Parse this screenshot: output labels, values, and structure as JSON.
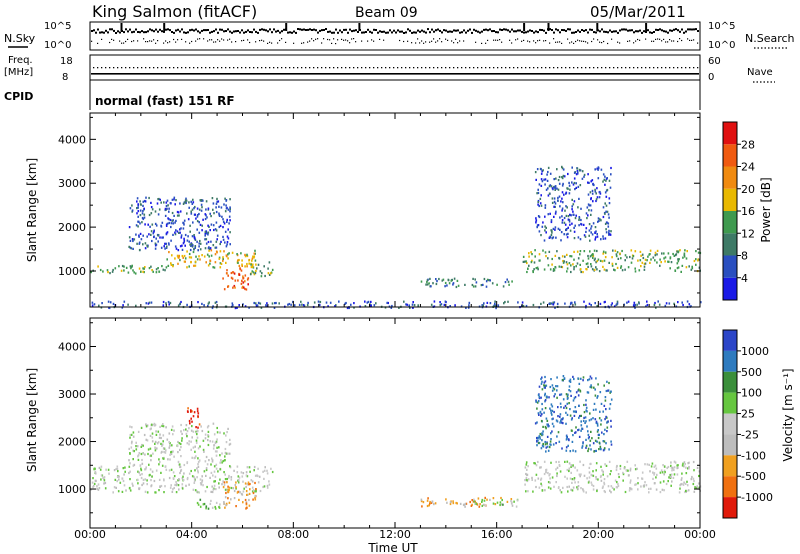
{
  "header": {
    "station": "King Salmon (fitACF)",
    "beam": "Beam 09",
    "date": "05/Mar/2011"
  },
  "summary_panels": {
    "nsky_label": "N.Sky",
    "nsearch_label": "N.Search",
    "count_ticks": [
      "10^5",
      "10^0"
    ],
    "freq_label_1": "Freq.",
    "freq_label_2": "[MHz]",
    "freq_ticks": [
      "18",
      "8"
    ],
    "nave_label": "Nave",
    "nave_ticks": [
      "60",
      "0"
    ],
    "cpid_label": "CPID",
    "cpid_text": "normal (fast) 151 RF"
  },
  "colors": {
    "power_scale": [
      "#1a1ae6",
      "#2a4fc0",
      "#3e7a66",
      "#3f9a4f",
      "#e8b800",
      "#f08a10",
      "#f05a10",
      "#e01010"
    ],
    "velocity_scale": [
      "#2b45c8",
      "#2e7bbf",
      "#3b8f3b",
      "#66c640",
      "#c8c8c8",
      "#bdbdbd",
      "#f0a020",
      "#f07010",
      "#e01a0a"
    ]
  },
  "chart_data": [
    {
      "type": "heatmap",
      "panel": "power",
      "ylabel": "Slant Range [km]",
      "yticks": [
        1000,
        2000,
        3000,
        4000
      ],
      "ylim": [
        180,
        4600
      ],
      "x_range_hours": [
        0,
        24
      ],
      "colorbar": {
        "label": "Power [dB]",
        "ticks": [
          "4",
          "8",
          "12",
          "16",
          "20",
          "24",
          "28"
        ]
      },
      "scatter_regions": [
        {
          "t_start": 0.0,
          "t_end": 3.0,
          "range_km": [
            950,
            1150
          ],
          "level": 3
        },
        {
          "t_start": 3.0,
          "t_end": 6.5,
          "range_km": [
            1100,
            1500
          ],
          "level": 4
        },
        {
          "t_start": 1.5,
          "t_end": 5.5,
          "range_km": [
            1500,
            2700
          ],
          "level": 1
        },
        {
          "t_start": 5.2,
          "t_end": 6.2,
          "range_km": [
            600,
            1100
          ],
          "level": 6
        },
        {
          "t_start": 6.2,
          "t_end": 7.2,
          "range_km": [
            900,
            1300
          ],
          "level": 3
        },
        {
          "t_start": 13.0,
          "t_end": 16.6,
          "range_km": [
            650,
            850
          ],
          "level": 2
        },
        {
          "t_start": 17.0,
          "t_end": 24.0,
          "range_km": [
            1000,
            1500
          ],
          "level": 3
        },
        {
          "t_start": 17.5,
          "t_end": 20.5,
          "range_km": [
            1700,
            3400
          ],
          "level": 1
        },
        {
          "t_start": 0.0,
          "t_end": 24.0,
          "range_km": [
            180,
            330
          ],
          "level": 1
        }
      ]
    },
    {
      "type": "heatmap",
      "panel": "velocity",
      "ylabel": "Slant Range [km]",
      "yticks": [
        1000,
        2000,
        3000,
        4000
      ],
      "ylim": [
        180,
        4600
      ],
      "xlabel": "Time UT",
      "xticks": [
        "00:00",
        "04:00",
        "08:00",
        "12:00",
        "16:00",
        "20:00",
        "00:00"
      ],
      "x_range_hours": [
        0,
        24
      ],
      "colorbar": {
        "label": "Velocity [m s⁻¹]",
        "ticks": [
          "1000",
          "500",
          "100",
          "25",
          "-25",
          "-100",
          "-500",
          "-1000"
        ]
      },
      "scatter_regions": [
        {
          "t_start": 0.0,
          "t_end": 7.2,
          "range_km": [
            950,
            1500
          ],
          "level": 4
        },
        {
          "t_start": 1.5,
          "t_end": 5.5,
          "range_km": [
            1500,
            2400
          ],
          "level": 4
        },
        {
          "t_start": 3.8,
          "t_end": 4.3,
          "range_km": [
            2300,
            2800
          ],
          "level": 8
        },
        {
          "t_start": 5.2,
          "t_end": 6.5,
          "range_km": [
            600,
            1200
          ],
          "level": 6
        },
        {
          "t_start": 4.2,
          "t_end": 5.3,
          "range_km": [
            600,
            800
          ],
          "level": 3
        },
        {
          "t_start": 13.0,
          "t_end": 16.6,
          "range_km": [
            650,
            850
          ],
          "level": 6
        },
        {
          "t_start": 15.0,
          "t_end": 16.8,
          "range_km": [
            650,
            800
          ],
          "level": 3
        },
        {
          "t_start": 17.0,
          "t_end": 24.0,
          "range_km": [
            950,
            1600
          ],
          "level": 4
        },
        {
          "t_start": 17.5,
          "t_end": 20.5,
          "range_km": [
            1800,
            3400
          ],
          "level": 1
        }
      ]
    }
  ]
}
